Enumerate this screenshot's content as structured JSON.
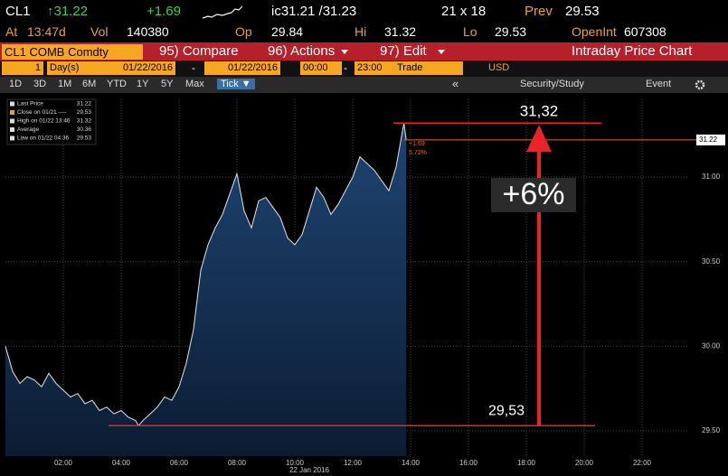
{
  "header": {
    "ticker": "CL1",
    "last": "↑31.22",
    "change": "+1.69",
    "bid_ask": "ic31.21 /31.23",
    "size": "21 x 18",
    "prev_label": "Prev",
    "prev": "29.53",
    "at_label": "At",
    "time": "13:47d",
    "vol_label": "Vol",
    "vol": "140380",
    "op_label": "Op",
    "op": "29.84",
    "hi_label": "Hi",
    "hi": "31.32",
    "lo_label": "Lo",
    "lo": "29.53",
    "oi_label": "OpenInt",
    "oi": "607308"
  },
  "toolbar": {
    "security": "CL1 COMB Comdty",
    "compare": "95) Compare",
    "actions": "96) Actions",
    "edit": "97) Edit",
    "title": "Intraday Price Chart"
  },
  "range": {
    "count": "1",
    "unit": "Day(s)",
    "start_date": "01/22/2016",
    "dash1": "-",
    "end_date": "01/22/2016",
    "start_time": "00:00",
    "dash2": "-",
    "end_time": "23:00",
    "field": "Trade",
    "currency": "USD"
  },
  "tabs": [
    "1D",
    "3D",
    "1M",
    "6M",
    "YTD",
    "1Y",
    "5Y",
    "Max",
    "Tick ▼"
  ],
  "tools": [
    "«",
    "Security/Study",
    "Event"
  ],
  "chart_data": {
    "type": "area",
    "xlabel": "22 Jan 2016",
    "x": [
      0,
      0.25,
      0.5,
      0.75,
      1,
      1.25,
      1.5,
      1.75,
      2,
      2.25,
      2.5,
      2.75,
      3,
      3.25,
      3.5,
      3.75,
      4,
      4.25,
      4.5,
      4.6,
      4.75,
      5,
      5.25,
      5.5,
      5.75,
      6,
      6.25,
      6.5,
      6.75,
      7,
      7.25,
      7.5,
      7.75,
      8,
      8.25,
      8.5,
      8.75,
      9,
      9.25,
      9.5,
      9.75,
      10,
      10.25,
      10.5,
      10.75,
      11,
      11.25,
      11.5,
      11.75,
      12,
      12.25,
      12.5,
      12.75,
      13,
      13.25,
      13.5,
      13.77,
      13.85
    ],
    "values": [
      30,
      29.85,
      29.78,
      29.82,
      29.8,
      29.76,
      29.84,
      29.78,
      29.74,
      29.7,
      29.72,
      29.66,
      29.68,
      29.62,
      29.64,
      29.6,
      29.62,
      29.58,
      29.56,
      29.53,
      29.56,
      29.6,
      29.64,
      29.7,
      29.68,
      29.76,
      29.9,
      30.1,
      30.45,
      30.6,
      30.7,
      30.78,
      30.9,
      31.02,
      30.8,
      30.7,
      30.86,
      30.88,
      30.82,
      30.76,
      30.64,
      30.6,
      30.66,
      30.8,
      30.94,
      30.88,
      30.78,
      30.84,
      30.92,
      31,
      31.12,
      31.08,
      31.04,
      30.98,
      30.92,
      31.06,
      31.32,
      31.22
    ],
    "line_color": "#dfe6ee",
    "fill_color": "#1d3d66",
    "xlim": [
      0,
      23
    ],
    "xticks": [
      {
        "value": 2,
        "label": "02:00"
      },
      {
        "value": 4,
        "label": "04:00"
      },
      {
        "value": 6,
        "label": "06:00"
      },
      {
        "value": 8,
        "label": "08:00"
      },
      {
        "value": 10,
        "label": "10:00"
      },
      {
        "value": 12,
        "label": "12:00"
      },
      {
        "value": 14,
        "label": "14:00"
      },
      {
        "value": 16,
        "label": "16:00"
      },
      {
        "value": 18,
        "label": "18:00"
      },
      {
        "value": 20,
        "label": "20:00"
      },
      {
        "value": 22,
        "label": "22:00"
      }
    ],
    "ylim": [
      29.35,
      31.46
    ],
    "yticks": [
      {
        "value": 29.5,
        "label": "29.50"
      },
      {
        "value": 30,
        "label": "30.00"
      },
      {
        "value": 30.5,
        "label": "30.50"
      },
      {
        "value": 31,
        "label": "31.00"
      }
    ],
    "grid": true,
    "legend": [
      {
        "name": "Last Price",
        "value": 31.22
      },
      {
        "name": "Close on 01/21 ----",
        "value": 29.53
      },
      {
        "name": "High on 01/22 13:46",
        "value": 31.32
      },
      {
        "name": "Average",
        "value": 30.36
      },
      {
        "name": "Low on 01/22 04:36",
        "value": 29.53
      }
    ],
    "hlines": [
      {
        "value": 31.32,
        "label": "31,32",
        "color": "#e8242a"
      },
      {
        "value": 29.53,
        "label": "29,53",
        "color": "#e8242a"
      },
      {
        "value": 31.22,
        "label": "31.22",
        "color": "#d9711c"
      }
    ],
    "annotations": [
      "+6%",
      "+1.69",
      "5.72%"
    ]
  }
}
